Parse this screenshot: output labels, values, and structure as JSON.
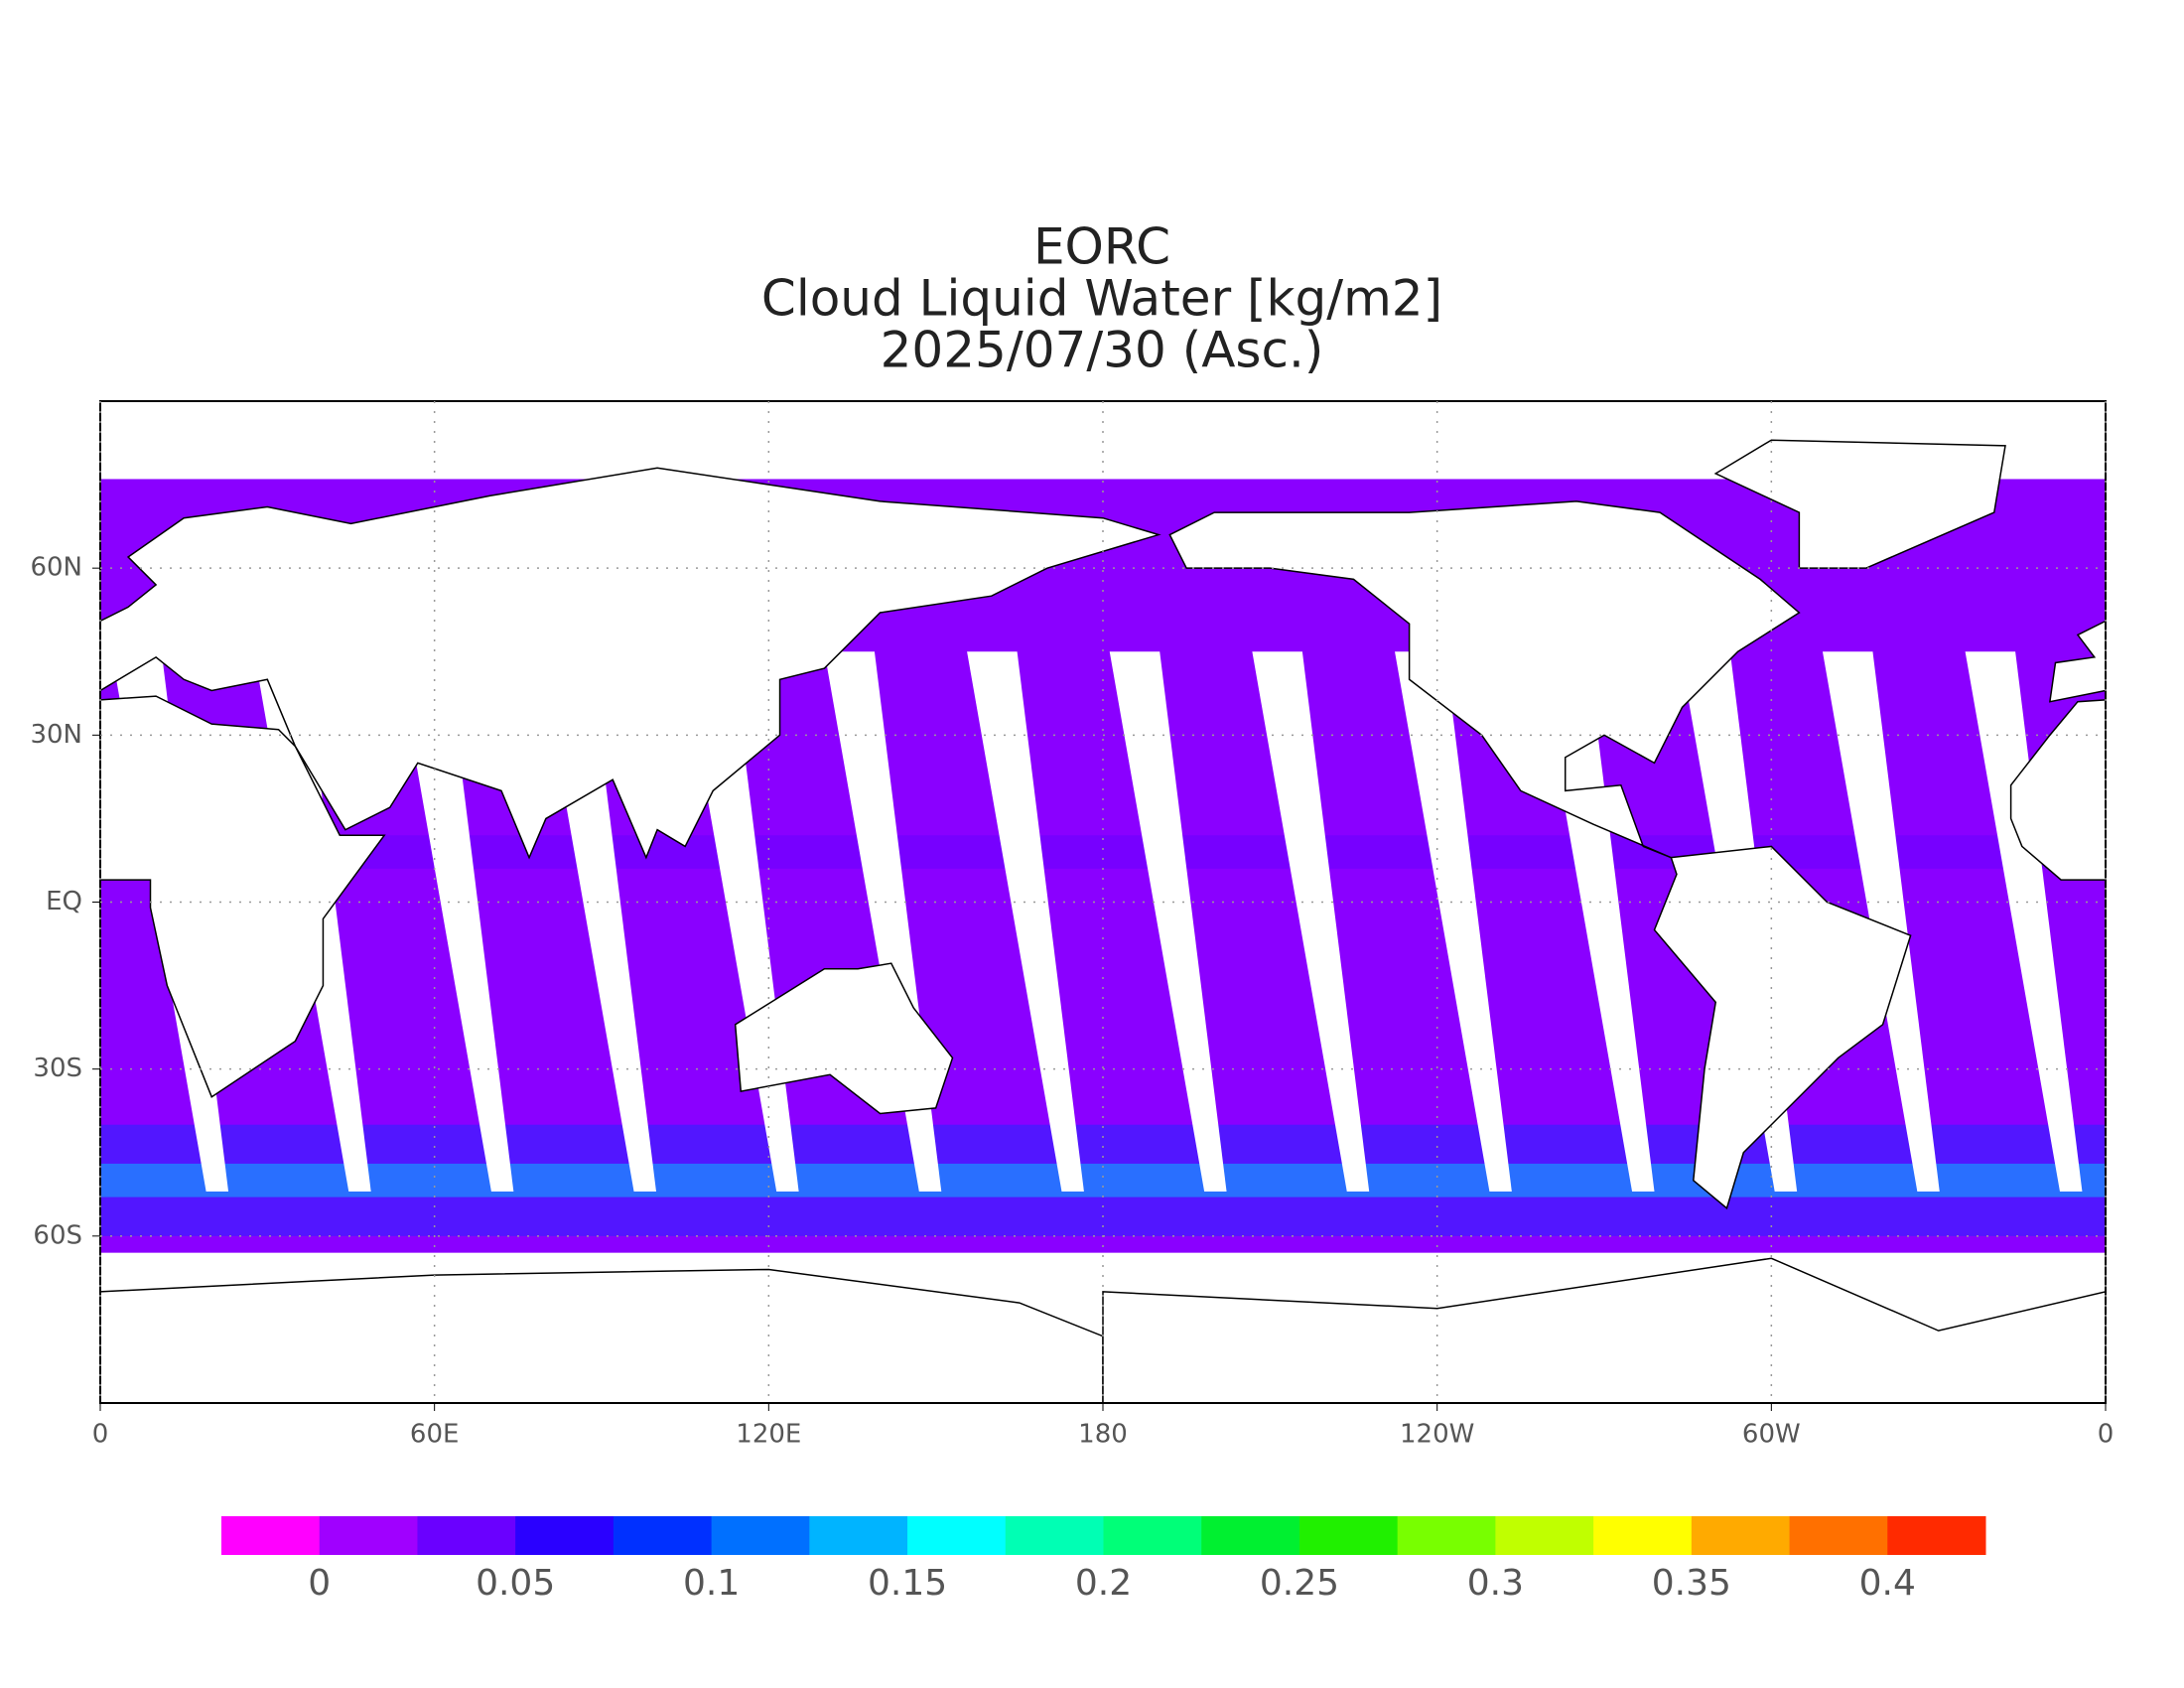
{
  "title_lines": [
    "EORC",
    "Cloud Liquid Water [kg/m2]",
    "2025/07/30 (Asc.)"
  ],
  "map": {
    "lon_range": [
      0,
      360
    ],
    "lat_range": [
      -90,
      90
    ],
    "lon_ticks": [
      {
        "value": 0,
        "label": "0"
      },
      {
        "value": 60,
        "label": "60E"
      },
      {
        "value": 120,
        "label": "120E"
      },
      {
        "value": 180,
        "label": "180"
      },
      {
        "value": 240,
        "label": "120W"
      },
      {
        "value": 300,
        "label": "60W"
      },
      {
        "value": 360,
        "label": "0"
      }
    ],
    "lat_ticks": [
      {
        "value": 60,
        "label": "60N"
      },
      {
        "value": 30,
        "label": "30N"
      },
      {
        "value": 0,
        "label": "EQ"
      },
      {
        "value": -30,
        "label": "30S"
      },
      {
        "value": -60,
        "label": "60S"
      }
    ],
    "grid": true
  },
  "colorbar": {
    "range": [
      -0.025,
      0.425
    ],
    "colors": [
      "#ff00ff",
      "#a000ff",
      "#6a00ff",
      "#2a00ff",
      "#0030ff",
      "#0070ff",
      "#00b4ff",
      "#00ffff",
      "#00ffb4",
      "#00ff78",
      "#00f030",
      "#20f000",
      "#78ff00",
      "#c0ff00",
      "#ffff00",
      "#ffaa00",
      "#ff7000",
      "#ff2a00"
    ],
    "ticks": [
      0,
      0.05,
      0.1,
      0.15,
      0.2,
      0.25,
      0.3,
      0.35,
      0.4
    ]
  }
}
